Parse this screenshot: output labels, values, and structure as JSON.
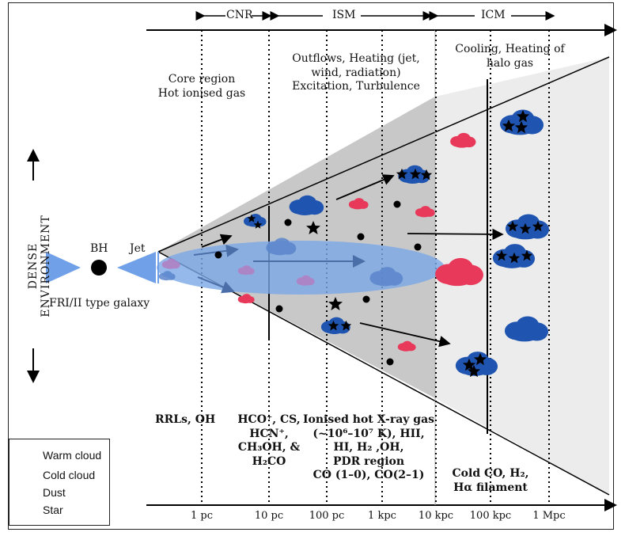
{
  "regions": {
    "cnr": "CNR",
    "ism": "ISM",
    "icm": "ICM"
  },
  "top_labels": {
    "core": [
      "Core region",
      "Hot ionised gas"
    ],
    "ism": [
      "Outflows, Heating (jet,",
      "wind, radiation)",
      "Excitation, Turbulence"
    ],
    "icm": [
      "Cooling, Heating  of",
      "halo gas"
    ]
  },
  "galaxy": {
    "bh": "BH",
    "jet": "Jet",
    "type": "FRI/II type galaxy"
  },
  "side_label": "DENSE   ENVIRONMENT",
  "molecules": {
    "col1": [
      "RRLs, OH"
    ],
    "col2": [
      "HCO⁺, CS,",
      "HCN⁺,",
      "CH₃OH, &",
      "H₂CO"
    ],
    "col3": [
      "Ionised  hot X-ray gas",
      "(~10⁶–10⁷ K), HII,",
      "HI, H₂ ,OH,",
      "PDR region",
      "CO (1–0), CO(2–1)"
    ],
    "col4": [
      "Cold CO, H₂,",
      "Hα filament"
    ]
  },
  "ticks": [
    "1 pc",
    "10 pc",
    "100 pc",
    "1 kpc",
    "10 kpc",
    "100 kpc",
    "1 Mpc"
  ],
  "legend": [
    {
      "label": "Warm cloud",
      "icon": "warm-cloud-icon",
      "color": "#e8395a"
    },
    {
      "label": "Cold cloud",
      "icon": "cold-cloud-icon",
      "color": "#1f55b0"
    },
    {
      "label": "Dust",
      "icon": "dust-icon",
      "color": "#000000"
    },
    {
      "label": "Star",
      "icon": "star-icon",
      "color": "#000000"
    }
  ],
  "colors": {
    "warm": "#e8395a",
    "cold": "#1f55b0",
    "jet": "#7aa8e6",
    "cone": "#c8c8c8",
    "icm_band": "#ececec"
  }
}
